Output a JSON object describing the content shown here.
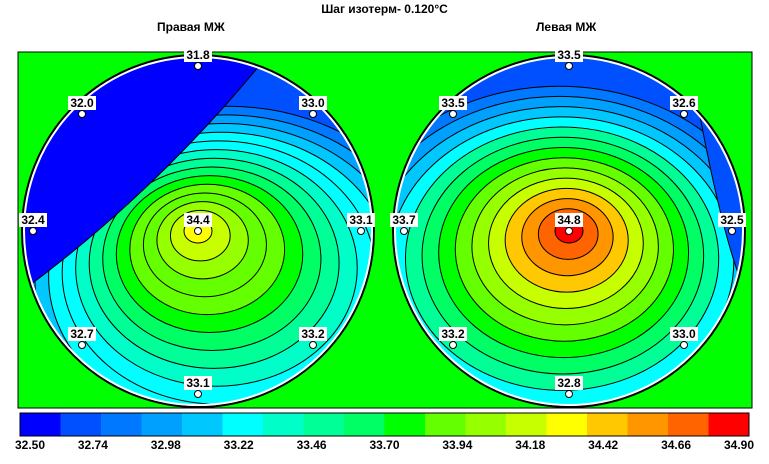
{
  "title": "Шаг изотерм- 0.120°С",
  "panels": [
    {
      "name": "Правая МЖ",
      "peak_color": "#ffff00",
      "sensors": [
        {
          "label": "31.8",
          "value": 31.8,
          "pos": "top"
        },
        {
          "label": "32.0",
          "value": 32.0,
          "pos": "upper-left"
        },
        {
          "label": "33.0",
          "value": 33.0,
          "pos": "upper-right"
        },
        {
          "label": "32.4",
          "value": 32.4,
          "pos": "left"
        },
        {
          "label": "34.4",
          "value": 34.4,
          "pos": "center"
        },
        {
          "label": "33.1",
          "value": 33.1,
          "pos": "right"
        },
        {
          "label": "32.7",
          "value": 32.7,
          "pos": "lower-left"
        },
        {
          "label": "33.2",
          "value": 33.2,
          "pos": "lower-right"
        },
        {
          "label": "33.1",
          "value": 33.1,
          "pos": "bottom"
        }
      ]
    },
    {
      "name": "Левая МЖ",
      "peak_color": "#ff0000",
      "sensors": [
        {
          "label": "33.5",
          "value": 33.5,
          "pos": "top"
        },
        {
          "label": "33.5",
          "value": 33.5,
          "pos": "upper-left"
        },
        {
          "label": "32.6",
          "value": 32.6,
          "pos": "upper-right"
        },
        {
          "label": "33.7",
          "value": 33.7,
          "pos": "left"
        },
        {
          "label": "34.8",
          "value": 34.8,
          "pos": "center"
        },
        {
          "label": "32.5",
          "value": 32.5,
          "pos": "right"
        },
        {
          "label": "33.2",
          "value": 33.2,
          "pos": "lower-left"
        },
        {
          "label": "33.0",
          "value": 33.0,
          "pos": "lower-right"
        },
        {
          "label": "32.8",
          "value": 32.8,
          "pos": "bottom"
        }
      ]
    }
  ],
  "scale": {
    "colors": [
      "#0000ff",
      "#0050ff",
      "#0078ff",
      "#00a0ff",
      "#00c8ff",
      "#00ffff",
      "#00ffc8",
      "#00ff96",
      "#00ff64",
      "#00ff00",
      "#64ff00",
      "#96ff00",
      "#c8ff00",
      "#ffff00",
      "#ffc800",
      "#ff9600",
      "#ff6400",
      "#ff0000"
    ],
    "labels": [
      "32.50",
      "32.74",
      "32.98",
      "33.22",
      "33.46",
      "33.70",
      "33.94",
      "34.18",
      "34.42",
      "34.66",
      "34.90"
    ]
  },
  "colors": {
    "background": "#00ff00",
    "frame": "#000000",
    "circle_border": "#ffffff"
  }
}
